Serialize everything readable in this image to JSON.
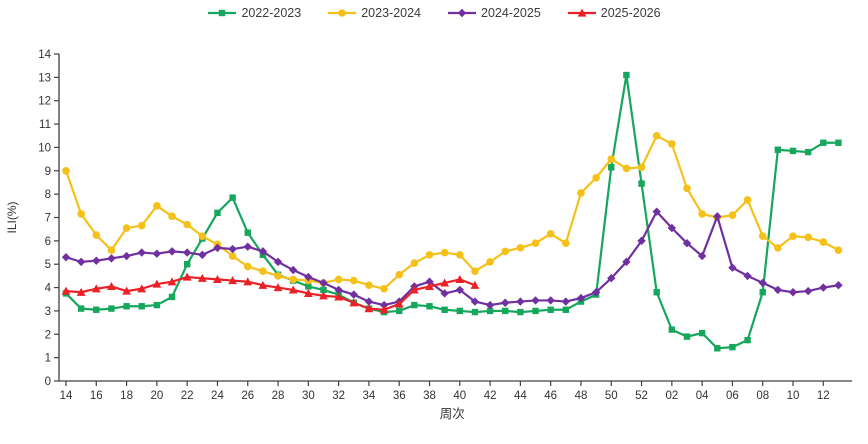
{
  "chart_data": {
    "type": "line",
    "title": "",
    "xlabel": "周次",
    "ylabel": "ILI(%)",
    "ylim": [
      0,
      14
    ],
    "ytick_step": 1,
    "x_label_every": 2,
    "grid": false,
    "legend_position": "top-center",
    "categories": [
      "14",
      "15",
      "16",
      "17",
      "18",
      "19",
      "20",
      "21",
      "22",
      "23",
      "24",
      "25",
      "26",
      "27",
      "28",
      "29",
      "30",
      "31",
      "32",
      "33",
      "34",
      "35",
      "36",
      "37",
      "38",
      "39",
      "40",
      "41",
      "42",
      "43",
      "44",
      "45",
      "46",
      "47",
      "48",
      "49",
      "50",
      "51",
      "52",
      "01",
      "02",
      "03",
      "04",
      "05",
      "06",
      "07",
      "08",
      "09",
      "10",
      "11",
      "12",
      "13"
    ],
    "series": [
      {
        "name": "2022-2023",
        "color": "#16a75c",
        "marker": "square",
        "values": [
          3.75,
          3.1,
          3.05,
          3.1,
          3.2,
          3.2,
          3.25,
          3.6,
          5.0,
          6.1,
          7.2,
          7.85,
          6.35,
          5.4,
          4.55,
          4.3,
          4.05,
          3.9,
          3.7,
          3.35,
          3.1,
          2.95,
          3.0,
          3.25,
          3.2,
          3.05,
          3.0,
          2.95,
          3.0,
          3.0,
          2.95,
          3.0,
          3.05,
          3.05,
          3.4,
          3.7,
          9.15,
          13.1,
          8.45,
          3.8,
          2.2,
          1.9,
          2.05,
          1.4,
          1.45,
          1.75,
          3.8,
          9.9,
          9.85,
          9.8,
          10.2,
          10.2
        ]
      },
      {
        "name": "2023-2024",
        "color": "#f5c118",
        "marker": "circle",
        "values": [
          9.0,
          7.15,
          6.25,
          5.6,
          6.55,
          6.65,
          7.5,
          7.05,
          6.7,
          6.2,
          5.85,
          5.35,
          4.9,
          4.7,
          4.5,
          4.35,
          4.3,
          4.2,
          4.35,
          4.3,
          4.1,
          3.95,
          4.55,
          5.05,
          5.4,
          5.5,
          5.4,
          4.7,
          5.1,
          5.55,
          5.7,
          5.9,
          6.3,
          5.9,
          8.05,
          8.7,
          9.5,
          9.1,
          9.15,
          10.5,
          10.15,
          8.25,
          7.15,
          7.0,
          7.1,
          7.75,
          6.2,
          5.7,
          6.2,
          6.15,
          5.95,
          5.6
        ]
      },
      {
        "name": "2024-2025",
        "color": "#7030a0",
        "marker": "diamond",
        "values": [
          5.3,
          5.1,
          5.15,
          5.25,
          5.35,
          5.5,
          5.45,
          5.55,
          5.5,
          5.4,
          5.7,
          5.65,
          5.75,
          5.55,
          5.1,
          4.75,
          4.45,
          4.2,
          3.9,
          3.7,
          3.4,
          3.25,
          3.4,
          4.05,
          4.25,
          3.75,
          3.9,
          3.4,
          3.25,
          3.35,
          3.4,
          3.45,
          3.45,
          3.4,
          3.55,
          3.8,
          4.4,
          5.1,
          6.0,
          7.25,
          6.55,
          5.9,
          5.35,
          7.05,
          4.85,
          4.5,
          4.2,
          3.9,
          3.8,
          3.85,
          4.0,
          4.1
        ]
      },
      {
        "name": "2025-2026",
        "color": "#ea2127",
        "marker": "triangle",
        "values": [
          3.85,
          3.8,
          3.95,
          4.05,
          3.85,
          3.95,
          4.15,
          4.25,
          4.45,
          4.4,
          4.35,
          4.3,
          4.25,
          4.1,
          4.0,
          3.9,
          3.75,
          3.65,
          3.6,
          3.35,
          3.1,
          3.05,
          3.3,
          3.9,
          4.05,
          4.2,
          4.35,
          4.1
        ]
      }
    ],
    "yticks": [
      "0",
      "1",
      "2",
      "3",
      "4",
      "5",
      "6",
      "7",
      "8",
      "9",
      "10",
      "11",
      "12",
      "13",
      "14"
    ]
  }
}
